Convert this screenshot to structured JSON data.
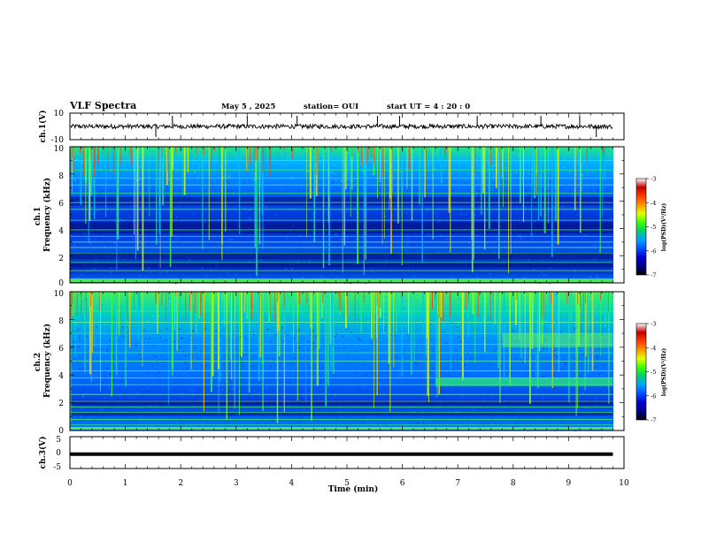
{
  "header": {
    "title": "VLF Spectra",
    "date": "May 5 , 2025",
    "station": "station= OUI",
    "start": "start UT =  4 : 20 : 0"
  },
  "colorbar": {
    "label": "log(PSD)(V²/Hz)",
    "ticks": [
      "-3",
      "-4",
      "-5",
      "-6",
      "-7"
    ],
    "colors": [
      "#ffffff",
      "#c00000",
      "#ff3c00",
      "#ff9600",
      "#e0ff00",
      "#3cff00",
      "#00d070",
      "#00a0ff",
      "#0050ff",
      "#0000d0",
      "#00008a",
      "#000000"
    ]
  },
  "chart_data": [
    {
      "type": "line",
      "panel": "ch.1 waveform",
      "ylabel": "ch.1(V)",
      "ylim": [
        -10,
        10
      ],
      "yticks": [
        "10",
        "-10"
      ],
      "x": [
        0,
        1,
        2,
        3,
        4,
        5,
        6,
        7,
        8,
        9,
        9.8
      ],
      "series": [
        {
          "values": [
            0,
            0.2,
            -0.1,
            0.1,
            0,
            -0.2,
            0.1,
            0,
            0.1,
            -0.1,
            0
          ]
        }
      ]
    },
    {
      "type": "heatmap",
      "panel": "ch.1 spectrogram",
      "ylabel": "ch.1\nFrequency (kHz)",
      "ylim": [
        0,
        10
      ],
      "yticks": [
        "0",
        "2",
        "4",
        "6",
        "8",
        "10"
      ],
      "xlim": [
        0,
        9.8
      ],
      "zlim": [
        -7,
        -3
      ],
      "zlabel": "log(PSD)(V²/Hz)"
    },
    {
      "type": "heatmap",
      "panel": "ch.2 spectrogram",
      "ylabel": "ch.2\nFrequency (kHz)",
      "ylim": [
        0,
        10
      ],
      "yticks": [
        "0",
        "2",
        "4",
        "6",
        "8",
        "10"
      ],
      "xlim": [
        0,
        9.8
      ],
      "zlim": [
        -7,
        -3
      ],
      "zlabel": "log(PSD)(V²/Hz)"
    },
    {
      "type": "line",
      "panel": "ch.3 waveform",
      "ylabel": "ch.3(V)",
      "ylim": [
        -5,
        5
      ],
      "yticks": [
        "5",
        "0",
        "-5"
      ],
      "xlabel": "Time (min)",
      "xlim": [
        0,
        10
      ],
      "xticks": [
        "0",
        "1",
        "2",
        "3",
        "4",
        "5",
        "6",
        "7",
        "8",
        "9",
        "10"
      ],
      "x": [
        0,
        9.8
      ],
      "series": [
        {
          "values": [
            -0.5,
            -0.5
          ]
        }
      ]
    }
  ]
}
